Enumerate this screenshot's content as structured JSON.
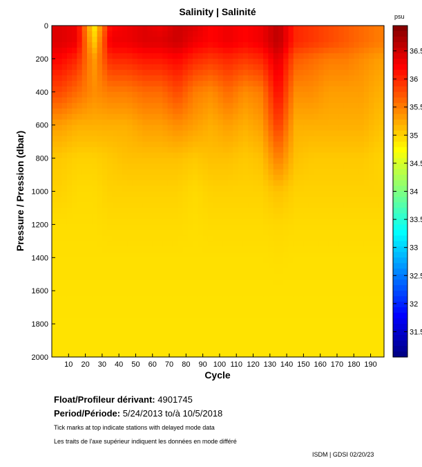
{
  "chart_data": {
    "type": "heatmap",
    "title": "Salinity | Salinité",
    "xlabel": "Cycle",
    "ylabel": "Pressure / Pression (dbar)",
    "xlim": [
      0,
      198
    ],
    "ylim": [
      2000,
      0
    ],
    "xticks": [
      10,
      20,
      30,
      40,
      50,
      60,
      70,
      80,
      90,
      100,
      110,
      120,
      130,
      140,
      150,
      160,
      170,
      180,
      190
    ],
    "yticks": [
      0,
      200,
      400,
      600,
      800,
      1000,
      1200,
      1400,
      1600,
      1800,
      2000
    ],
    "colorbar": {
      "unit": "psu",
      "range": [
        31.05,
        36.95
      ],
      "ticks": [
        "31.5",
        "32",
        "32.5",
        "33",
        "33.5",
        "34",
        "34.5",
        "35",
        "35.5",
        "36",
        "36.5"
      ],
      "colormap": "jet"
    },
    "contour_levels": [
      35,
      35.5,
      36,
      36.5
    ],
    "x": [
      5,
      15,
      25,
      35,
      45,
      55,
      65,
      75,
      85,
      95,
      105,
      115,
      125,
      135,
      145,
      155,
      165,
      175,
      185,
      195
    ],
    "y": [
      0,
      100,
      200,
      400,
      600,
      800,
      1000,
      1200,
      1400,
      1600,
      1800,
      2000
    ],
    "z": [
      [
        36.4,
        36.3,
        34.8,
        36.2,
        36.3,
        36.4,
        36.3,
        36.5,
        36.4,
        36.2,
        36.3,
        36.2,
        36.3,
        36.6,
        36.0,
        35.9,
        35.8,
        35.7,
        35.6,
        35.5
      ],
      [
        36.4,
        36.3,
        35.0,
        36.3,
        36.3,
        36.4,
        36.4,
        36.5,
        36.3,
        36.2,
        36.3,
        36.2,
        36.3,
        36.6,
        36.0,
        35.9,
        35.8,
        35.7,
        35.6,
        35.5
      ],
      [
        36.2,
        36.0,
        35.3,
        36.0,
        36.0,
        36.1,
        36.1,
        36.2,
        36.0,
        35.9,
        36.0,
        35.9,
        36.0,
        36.4,
        35.7,
        35.6,
        35.5,
        35.5,
        35.4,
        35.3
      ],
      [
        35.8,
        35.6,
        35.4,
        35.5,
        35.5,
        35.6,
        35.6,
        35.8,
        35.5,
        35.4,
        35.6,
        35.4,
        35.5,
        36.2,
        35.4,
        35.4,
        35.3,
        35.3,
        35.3,
        35.2
      ],
      [
        35.3,
        35.2,
        35.2,
        35.2,
        35.2,
        35.3,
        35.3,
        35.4,
        35.3,
        35.2,
        35.3,
        35.2,
        35.3,
        35.9,
        35.2,
        35.2,
        35.2,
        35.2,
        35.2,
        35.1
      ],
      [
        35.05,
        35.0,
        35.0,
        35.05,
        35.1,
        35.1,
        35.1,
        35.1,
        35.05,
        35.1,
        35.1,
        35.05,
        35.1,
        35.5,
        35.1,
        35.05,
        35.05,
        35.05,
        35.05,
        35.0
      ],
      [
        35.0,
        34.95,
        34.95,
        35.0,
        35.0,
        35.0,
        35.0,
        35.0,
        34.95,
        35.0,
        35.0,
        35.0,
        35.0,
        35.1,
        35.0,
        35.0,
        35.0,
        35.0,
        35.0,
        35.0
      ],
      [
        34.93,
        34.93,
        34.93,
        34.95,
        34.95,
        34.95,
        34.95,
        34.95,
        34.93,
        34.95,
        34.95,
        34.95,
        34.95,
        34.97,
        34.95,
        34.95,
        34.95,
        34.95,
        34.95,
        34.95
      ],
      [
        34.92,
        34.92,
        34.92,
        34.92,
        34.92,
        34.92,
        34.92,
        34.92,
        34.92,
        34.92,
        34.92,
        34.92,
        34.92,
        34.93,
        34.92,
        34.92,
        34.92,
        34.92,
        34.92,
        34.92
      ],
      [
        34.91,
        34.91,
        34.91,
        34.91,
        34.91,
        34.91,
        34.91,
        34.91,
        34.91,
        34.91,
        34.91,
        34.91,
        34.91,
        34.91,
        34.91,
        34.91,
        34.91,
        34.91,
        34.91,
        34.91
      ],
      [
        34.9,
        34.9,
        34.9,
        34.9,
        34.9,
        34.9,
        34.9,
        34.9,
        34.9,
        34.9,
        34.9,
        34.9,
        34.9,
        34.9,
        34.9,
        34.9,
        34.9,
        34.9,
        34.9,
        34.9
      ],
      [
        34.9,
        34.9,
        34.9,
        34.9,
        34.9,
        34.9,
        34.9,
        34.9,
        34.9,
        34.9,
        34.9,
        34.9,
        34.9,
        34.9,
        34.9,
        34.9,
        34.9,
        34.9,
        34.9,
        34.9
      ]
    ]
  },
  "info": {
    "float_label": "Float/Profileur dérivant:",
    "float_id": "4901745",
    "period_label": "Period/Période:",
    "period_value": "5/24/2013  to/à  10/5/2018",
    "note_en": "Tick marks at top indicate stations with delayed mode data",
    "note_fr": "Les traits de l'axe supérieur indiquent les données en mode différé",
    "credit": "ISDM | GDSI  02/20/23"
  }
}
